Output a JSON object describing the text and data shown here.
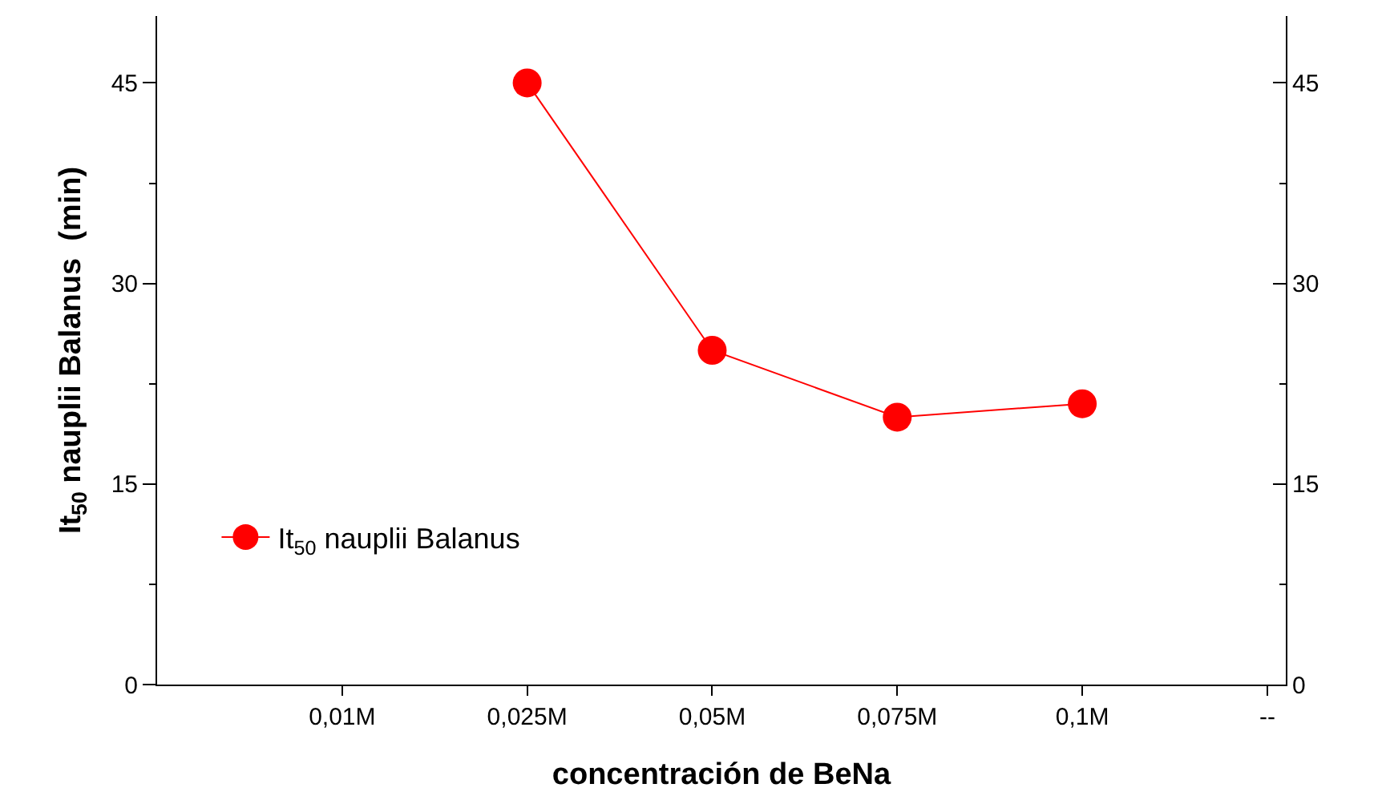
{
  "chart_data": {
    "type": "line",
    "ylabel": "It$_{50}$ nauplii Balanus  (min)",
    "xlabel": "concentración de BeNa",
    "categories": [
      null,
      "0,01M",
      "0,025M",
      "0,05M",
      "0,075M",
      "0,1M",
      "--"
    ],
    "series": [
      {
        "name": "It$_{50}$ nauplii Balanus",
        "color": "#ff0000",
        "values": [
          null,
          null,
          45,
          25,
          20,
          21,
          null
        ]
      }
    ],
    "ylim": [
      0,
      50
    ],
    "yticks": [
      0,
      15,
      30,
      45
    ],
    "y2lim": [
      0,
      50
    ],
    "y2ticks": [
      0,
      15,
      30,
      45
    ],
    "grid": false,
    "legend": "bottom left",
    "marker": "circle",
    "line_style": "solid"
  }
}
